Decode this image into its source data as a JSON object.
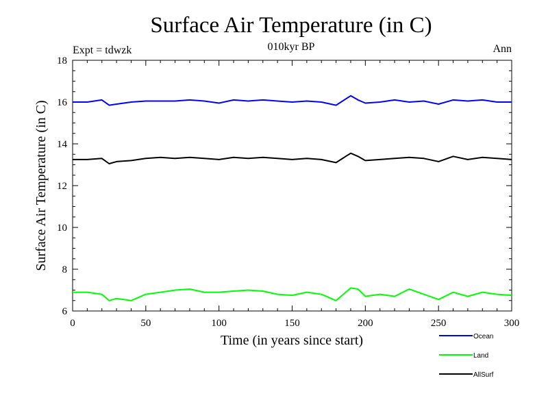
{
  "chart_data": {
    "type": "line",
    "title": "Surface Air Temperature (in C)",
    "subtitle": "010kyr BP",
    "left_label": "Expt = tdwzk",
    "right_label": "Ann",
    "xlabel": "Time (in years since start)",
    "ylabel": "Surface Air Temperature (in C)",
    "xlim": [
      0,
      300
    ],
    "ylim": [
      6,
      18
    ],
    "xticks": [
      0,
      50,
      100,
      150,
      200,
      250,
      300
    ],
    "yticks": [
      6,
      8,
      10,
      12,
      14,
      16,
      18
    ],
    "grid": false,
    "legend_position": "bottom-right",
    "x": [
      0,
      10,
      20,
      25,
      30,
      40,
      50,
      60,
      70,
      80,
      90,
      100,
      110,
      120,
      130,
      140,
      150,
      160,
      170,
      180,
      190,
      195,
      200,
      210,
      220,
      230,
      240,
      250,
      260,
      270,
      280,
      290,
      300
    ],
    "series": [
      {
        "name": "Ocean",
        "color": "#0000ff",
        "values": [
          16.0,
          16.0,
          16.1,
          15.85,
          15.9,
          16.0,
          16.05,
          16.05,
          16.05,
          16.1,
          16.05,
          15.95,
          16.1,
          16.05,
          16.1,
          16.05,
          16.0,
          16.05,
          16.0,
          15.85,
          16.3,
          16.1,
          15.95,
          16.0,
          16.1,
          16.0,
          16.05,
          15.9,
          16.1,
          16.05,
          16.1,
          16.0,
          16.0
        ]
      },
      {
        "name": "Land",
        "color": "#00ff00",
        "values": [
          6.9,
          6.9,
          6.8,
          6.5,
          6.6,
          6.5,
          6.8,
          6.9,
          7.0,
          7.05,
          6.9,
          6.9,
          6.95,
          7.0,
          6.95,
          6.8,
          6.75,
          6.9,
          6.8,
          6.5,
          7.1,
          7.05,
          6.7,
          6.8,
          6.7,
          7.05,
          6.8,
          6.55,
          6.9,
          6.7,
          6.9,
          6.8,
          6.75
        ]
      },
      {
        "name": "AllSurf",
        "color": "#000000",
        "values": [
          13.25,
          13.25,
          13.3,
          13.05,
          13.15,
          13.2,
          13.3,
          13.35,
          13.3,
          13.35,
          13.3,
          13.25,
          13.35,
          13.3,
          13.35,
          13.3,
          13.25,
          13.3,
          13.25,
          13.1,
          13.55,
          13.4,
          13.2,
          13.25,
          13.3,
          13.35,
          13.3,
          13.15,
          13.4,
          13.25,
          13.35,
          13.3,
          13.25
        ]
      }
    ]
  }
}
